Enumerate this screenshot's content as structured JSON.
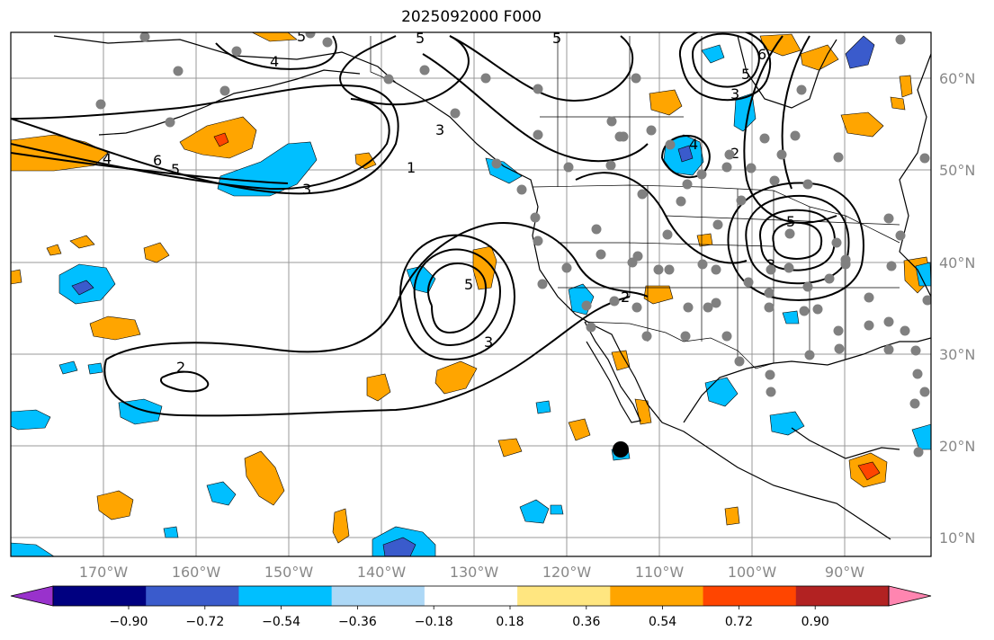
{
  "title": "2025092000 F000",
  "axes": {
    "lat_labels": [
      "60°N",
      "50°N",
      "40°N",
      "30°N",
      "20°N",
      "10°N"
    ],
    "lon_labels": [
      "170°W",
      "160°W",
      "150°W",
      "140°W",
      "130°W",
      "120°W",
      "110°W",
      "100°W",
      "90°W"
    ]
  },
  "contour_labels": [
    "5",
    "5",
    "6",
    "4",
    "3",
    "5",
    "4",
    "6",
    "5",
    "3",
    "2",
    "1",
    "3",
    "4",
    "5",
    "2",
    "3",
    "2",
    "5",
    "5",
    "3"
  ],
  "colorbar": {
    "tick_labels": [
      "−0.90",
      "−0.72",
      "−0.54",
      "−0.36",
      "−0.18",
      "0.18",
      "0.36",
      "0.54",
      "0.72",
      "0.90"
    ],
    "colors": [
      "#9932cc",
      "#000080",
      "#3a5bcc",
      "#00bfff",
      "#add8f6",
      "#ffffff",
      "#ffe680",
      "#ffa500",
      "#ff4500",
      "#b22222",
      "#ff85b0"
    ]
  },
  "colors": {
    "grid": "#999999",
    "coast": "#000000",
    "station": "#808080",
    "marker": "#000000"
  }
}
